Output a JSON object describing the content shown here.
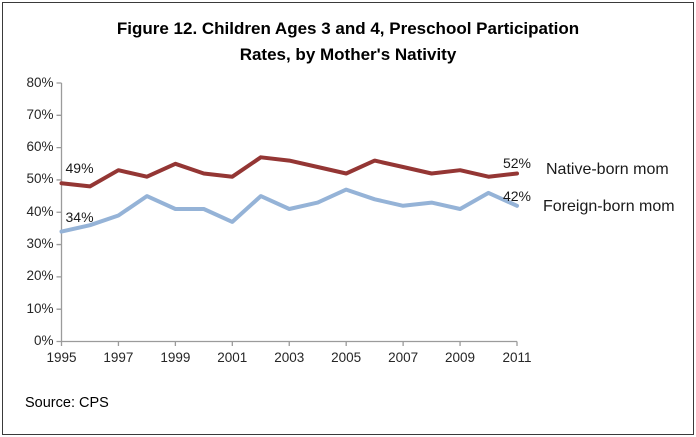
{
  "figure": {
    "border_color": "#3a3a3a",
    "background": "#ffffff"
  },
  "title": {
    "line1": "Figure 12. Children Ages 3 and 4, Preschool Participation",
    "line2": "Rates, by Mother's Nativity"
  },
  "source_note": "Source: CPS",
  "chart_data": {
    "type": "line",
    "title": "Figure 12. Children Ages 3 and 4, Preschool Participation Rates, by Mother's Nativity",
    "x": [
      1995,
      1996,
      1997,
      1998,
      1999,
      2000,
      2001,
      2002,
      2003,
      2004,
      2005,
      2006,
      2007,
      2008,
      2009,
      2010,
      2011
    ],
    "x_tick_labels": [
      "1995",
      "1997",
      "1999",
      "2001",
      "2003",
      "2005",
      "2007",
      "2009",
      "2011"
    ],
    "x_tick_years": [
      1995,
      1997,
      1999,
      2001,
      2003,
      2005,
      2007,
      2009,
      2011
    ],
    "y_ticks": [
      0,
      10,
      20,
      30,
      40,
      50,
      60,
      70,
      80
    ],
    "y_tick_labels": [
      "0%",
      "10%",
      "20%",
      "30%",
      "40%",
      "50%",
      "60%",
      "70%",
      "80%"
    ],
    "ylim": [
      0,
      80
    ],
    "grid": false,
    "axis_color": "#9b9b9b",
    "legend_position": "right-of-plot",
    "series": [
      {
        "name": "Native-born mom",
        "color": "#943634",
        "values": [
          49,
          48,
          53,
          51,
          55,
          52,
          51,
          57,
          56,
          54,
          52,
          56,
          54,
          52,
          53,
          51,
          52
        ]
      },
      {
        "name": "Foreign-born mom",
        "color": "#95B3D7",
        "values": [
          34,
          36,
          39,
          45,
          41,
          41,
          37,
          45,
          41,
          43,
          47,
          44,
          42,
          43,
          41,
          46,
          42
        ]
      }
    ],
    "point_labels": [
      {
        "series": "Native-born mom",
        "year": 1995,
        "text": "49%"
      },
      {
        "series": "Foreign-born mom",
        "year": 1995,
        "text": "34%"
      },
      {
        "series": "Native-born mom",
        "year": 2011,
        "text": "52%"
      },
      {
        "series": "Foreign-born mom",
        "year": 2011,
        "text": "42%"
      }
    ]
  }
}
